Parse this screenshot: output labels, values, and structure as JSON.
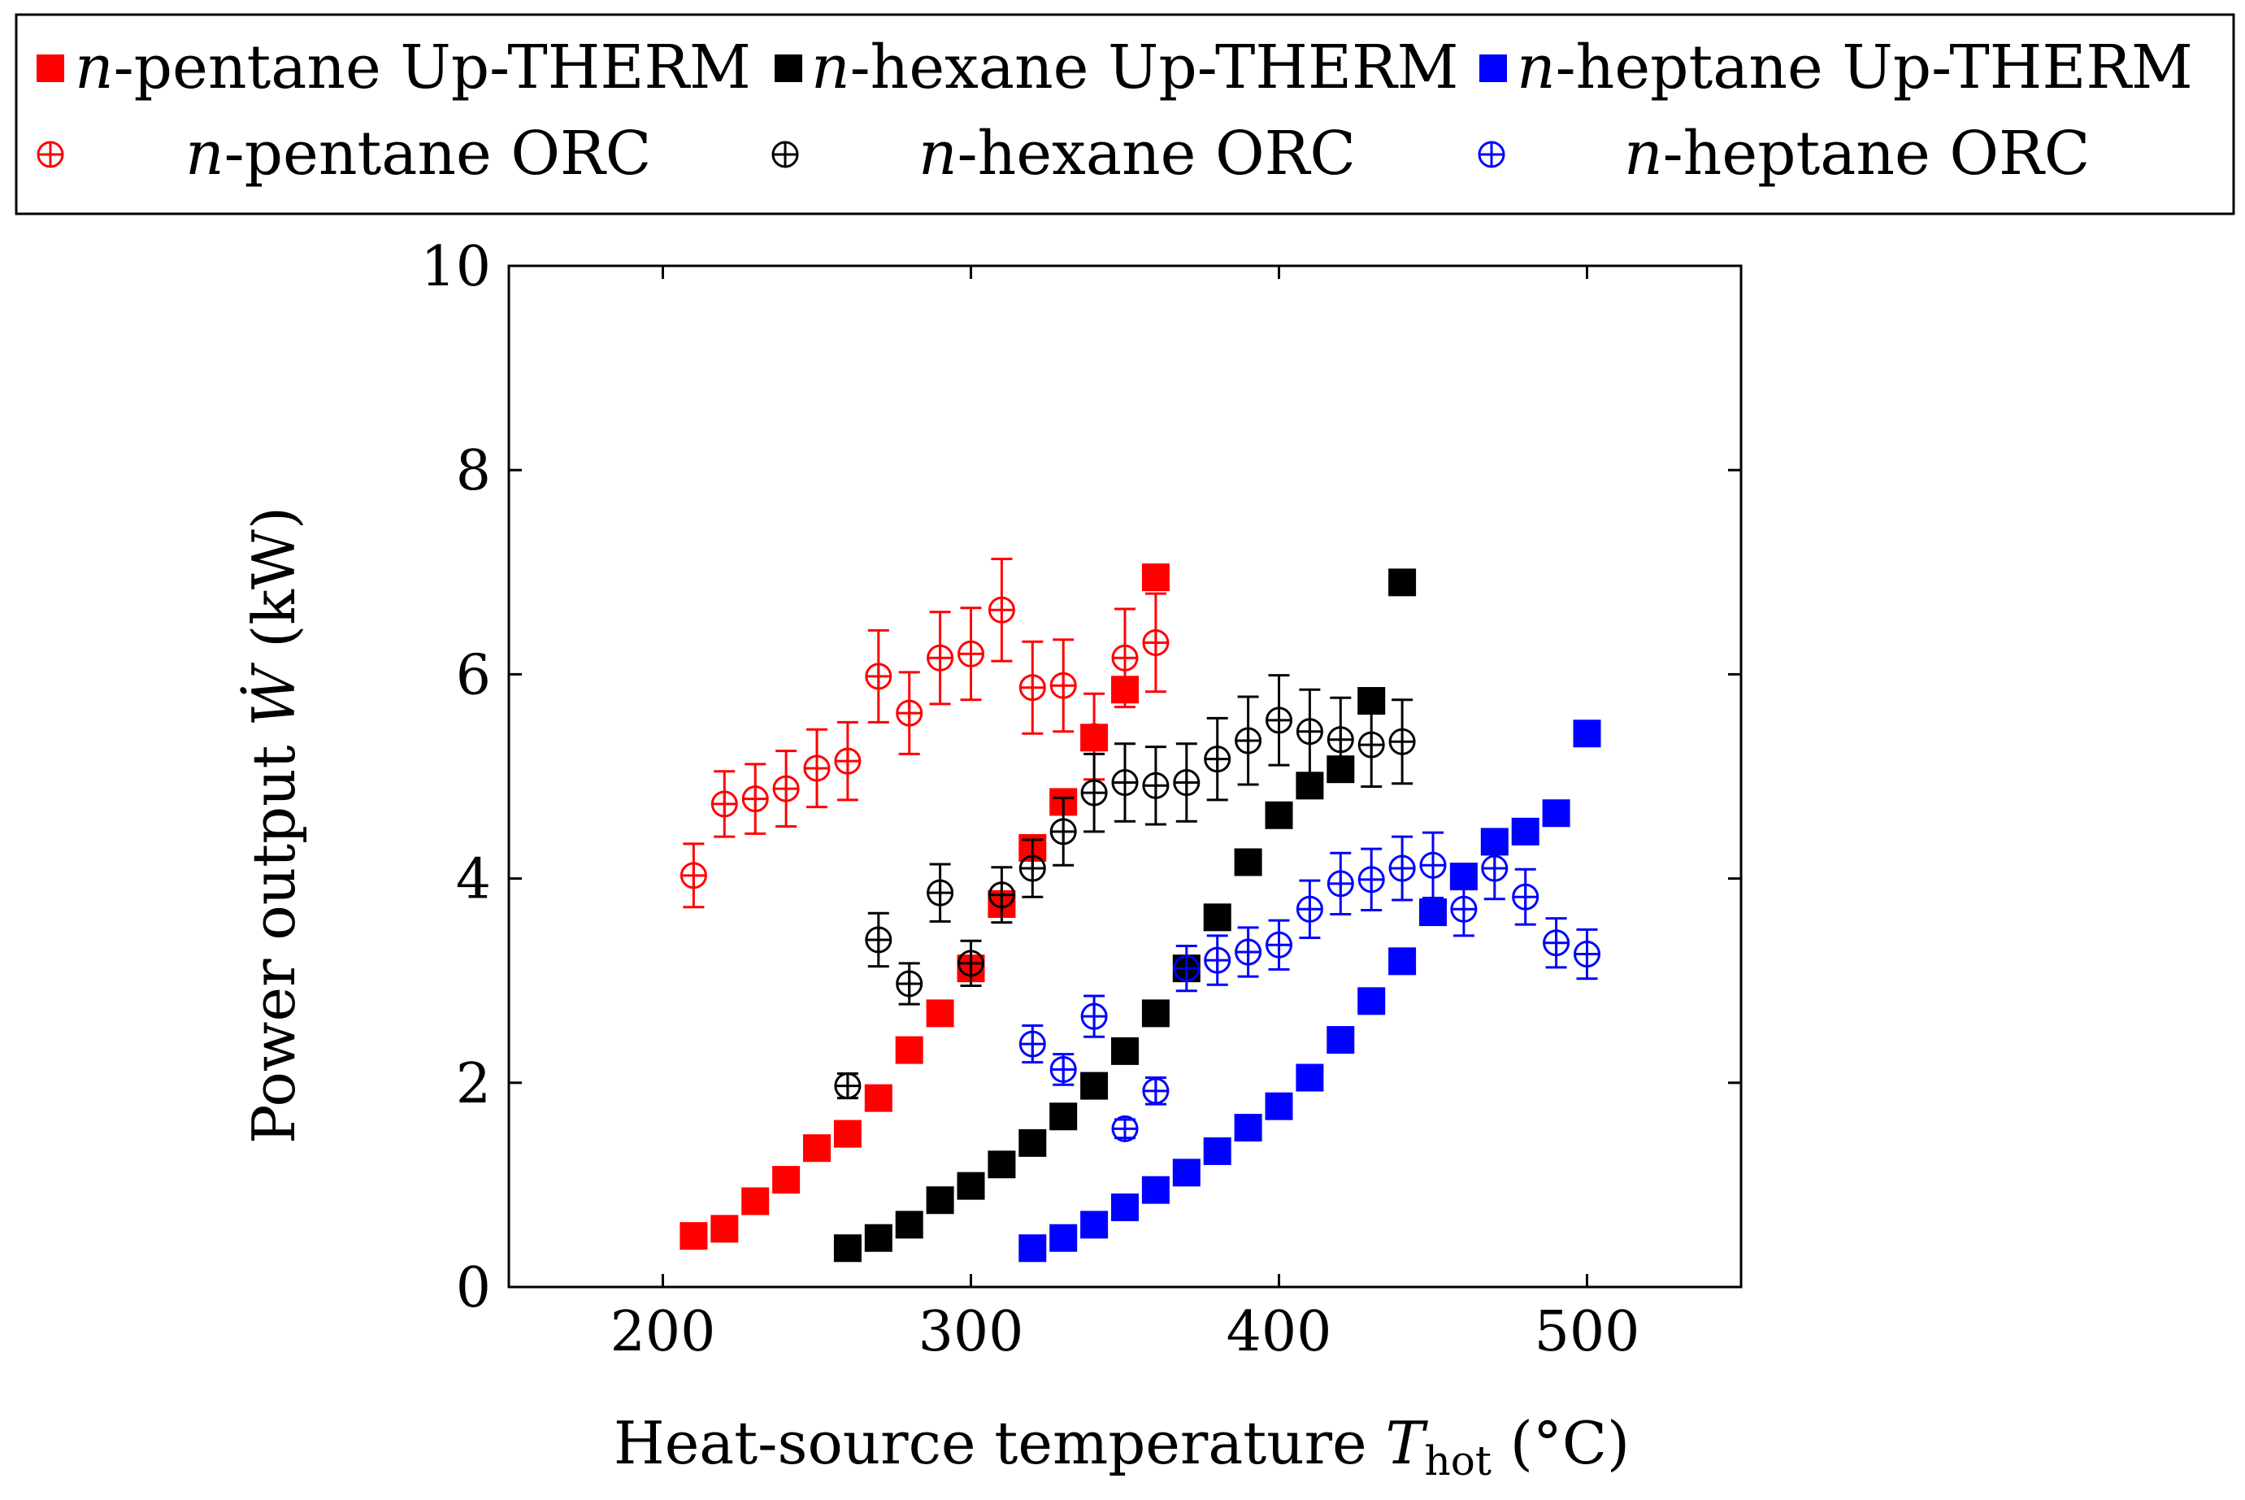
{
  "chart_data": {
    "type": "scatter",
    "title": "",
    "xlabel_main": "Heat-source temperature ",
    "xlabel_var": "T",
    "xlabel_sub": "hot",
    "xlabel_unit": " (°C)",
    "ylabel_main": "Power output ",
    "ylabel_var": "Ẇ",
    "ylabel_unit": " (kW)",
    "xlim": [
      150,
      550
    ],
    "ylim": [
      0,
      10
    ],
    "xticks": [
      200,
      300,
      400,
      500
    ],
    "yticks": [
      0,
      2,
      4,
      6,
      8,
      10
    ],
    "grid": false,
    "legend_position": "top, above plot",
    "colors": {
      "pentane": "#ff0000",
      "hexane": "#000000",
      "heptane": "#0000ff"
    },
    "series": [
      {
        "name": "n-pentane Up-THERM",
        "label_italic": "n",
        "label_rest": "-pentane Up-THERM",
        "color_key": "pentane",
        "marker": "square",
        "x": [
          210,
          220,
          230,
          240,
          250,
          260,
          270,
          280,
          290,
          300,
          310,
          320,
          330,
          340,
          350,
          360
        ],
        "y": [
          0.5,
          0.57,
          0.84,
          1.05,
          1.36,
          1.5,
          1.85,
          2.32,
          2.68,
          3.12,
          3.75,
          4.3,
          4.75,
          5.38,
          5.85,
          6.95
        ]
      },
      {
        "name": "n-hexane Up-THERM",
        "label_italic": "n",
        "label_rest": "-hexane Up-THERM",
        "color_key": "hexane",
        "marker": "square",
        "x": [
          260,
          270,
          280,
          290,
          300,
          310,
          320,
          330,
          340,
          350,
          360,
          370,
          380,
          390,
          400,
          410,
          420,
          430,
          440
        ],
        "y": [
          0.38,
          0.48,
          0.61,
          0.85,
          0.99,
          1.2,
          1.41,
          1.67,
          1.97,
          2.31,
          2.68,
          3.12,
          3.62,
          4.16,
          4.62,
          4.91,
          5.07,
          5.74,
          6.9
        ]
      },
      {
        "name": "n-heptane Up-THERM",
        "label_italic": "n",
        "label_rest": "-heptane Up-THERM",
        "color_key": "heptane",
        "marker": "square",
        "x": [
          320,
          330,
          340,
          350,
          360,
          370,
          380,
          390,
          400,
          410,
          420,
          430,
          440,
          450,
          460,
          470,
          480,
          490,
          500
        ],
        "y": [
          0.38,
          0.48,
          0.61,
          0.78,
          0.95,
          1.12,
          1.33,
          1.56,
          1.77,
          2.05,
          2.42,
          2.8,
          3.19,
          3.67,
          4.02,
          4.36,
          4.46,
          4.64,
          5.42
        ]
      },
      {
        "name": "n-pentane ORC",
        "label_italic": "n",
        "label_rest": "-pentane ORC",
        "color_key": "pentane",
        "marker": "oplus",
        "x": [
          210,
          220,
          230,
          240,
          250,
          260,
          270,
          280,
          290,
          300,
          310,
          320,
          330,
          340,
          350,
          360
        ],
        "y": [
          4.03,
          4.73,
          4.78,
          4.88,
          5.08,
          5.15,
          5.98,
          5.62,
          6.16,
          6.2,
          6.63,
          5.87,
          5.89,
          5.39,
          6.16,
          6.31
        ],
        "err": [
          0.31,
          0.32,
          0.34,
          0.37,
          0.38,
          0.38,
          0.45,
          0.4,
          0.45,
          0.45,
          0.5,
          0.45,
          0.45,
          0.42,
          0.48,
          0.48
        ]
      },
      {
        "name": "n-hexane ORC",
        "label_italic": "n",
        "label_rest": "-hexane ORC",
        "color_key": "hexane",
        "marker": "oplus",
        "x": [
          260,
          270,
          280,
          290,
          300,
          310,
          320,
          330,
          340,
          350,
          360,
          370,
          380,
          390,
          400,
          410,
          420,
          430,
          440
        ],
        "y": [
          1.97,
          3.4,
          2.97,
          3.86,
          3.17,
          3.84,
          4.1,
          4.46,
          4.84,
          4.94,
          4.91,
          4.94,
          5.17,
          5.35,
          5.55,
          5.44,
          5.36,
          5.31,
          5.34
        ],
        "err": [
          0.12,
          0.26,
          0.2,
          0.28,
          0.22,
          0.27,
          0.28,
          0.33,
          0.38,
          0.38,
          0.38,
          0.38,
          0.4,
          0.43,
          0.44,
          0.41,
          0.41,
          0.41,
          0.41
        ]
      },
      {
        "name": "n-heptane ORC",
        "label_italic": "n",
        "label_rest": "-heptane ORC",
        "color_key": "heptane",
        "marker": "oplus",
        "x": [
          320,
          330,
          340,
          350,
          360,
          370,
          380,
          390,
          400,
          410,
          420,
          430,
          440,
          450,
          460,
          470,
          480,
          490,
          500
        ],
        "y": [
          2.38,
          2.13,
          2.65,
          1.55,
          1.92,
          3.12,
          3.2,
          3.28,
          3.35,
          3.7,
          3.95,
          3.99,
          4.1,
          4.13,
          3.7,
          4.1,
          3.82,
          3.37,
          3.26
        ],
        "err": [
          0.18,
          0.15,
          0.2,
          0.09,
          0.13,
          0.22,
          0.24,
          0.24,
          0.24,
          0.28,
          0.3,
          0.3,
          0.31,
          0.32,
          0.26,
          0.3,
          0.27,
          0.24,
          0.24
        ]
      }
    ]
  }
}
